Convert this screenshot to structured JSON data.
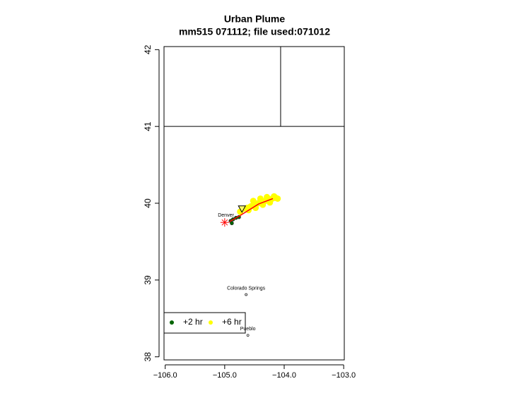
{
  "chart_data": {
    "type": "scatter",
    "title": "Urban Plume",
    "subtitle": "mm515 071112; file used:071012",
    "xlim": [
      -106.02,
      -102.99
    ],
    "ylim": [
      37.96,
      42.04
    ],
    "xticks": [
      {
        "value": -106,
        "label": "−106.0"
      },
      {
        "value": -105,
        "label": "−105.0"
      },
      {
        "value": -104,
        "label": "−104.0"
      },
      {
        "value": -103,
        "label": "−103.0"
      }
    ],
    "yticks": [
      38,
      39,
      40,
      41,
      42
    ],
    "boundaries": [
      {
        "x": [
          -106.02,
          -102.99
        ],
        "y": [
          41,
          41
        ]
      },
      {
        "x": [
          -104.06,
          -104.06
        ],
        "y": [
          41,
          42.04
        ]
      }
    ],
    "series": [
      {
        "name": "+2 hr",
        "color": "#006400",
        "x": [
          -104.9,
          -104.86,
          -104.81,
          -104.76,
          -104.88
        ],
        "y": [
          39.77,
          39.79,
          39.81,
          39.82,
          39.74
        ]
      },
      {
        "name": "+6 hr",
        "color": "#ffff00",
        "x": [
          -104.74,
          -104.68,
          -104.62,
          -104.56,
          -104.5,
          -104.44,
          -104.38,
          -104.32,
          -104.26,
          -104.2,
          -104.14,
          -104.11,
          -104.6,
          -104.48,
          -104.36,
          -104.24,
          -104.52,
          -104.4,
          -104.29,
          -104.17
        ],
        "y": [
          39.89,
          39.93,
          39.94,
          39.96,
          39.98,
          40.0,
          40.02,
          40.03,
          40.05,
          40.06,
          40.07,
          40.06,
          39.91,
          39.94,
          39.98,
          40.01,
          40.03,
          40.06,
          40.08,
          40.09
        ]
      }
    ],
    "track": {
      "color": "#ff0000",
      "x": [
        -104.92,
        -104.74,
        -104.43,
        -104.19
      ],
      "y": [
        39.76,
        39.84,
        39.99,
        40.06
      ]
    },
    "source": {
      "color": "#ff0000",
      "x": -105.0,
      "y": 39.75
    },
    "receptor": {
      "x": -104.71,
      "y": 39.92
    },
    "cities": [
      {
        "name": "Denver",
        "x": -104.98,
        "y": 39.75
      },
      {
        "name": "Colorado Springs",
        "x": -104.64,
        "y": 38.81
      },
      {
        "name": "Pueblo",
        "x": -104.61,
        "y": 38.28
      }
    ],
    "legend": "bottomleft"
  }
}
